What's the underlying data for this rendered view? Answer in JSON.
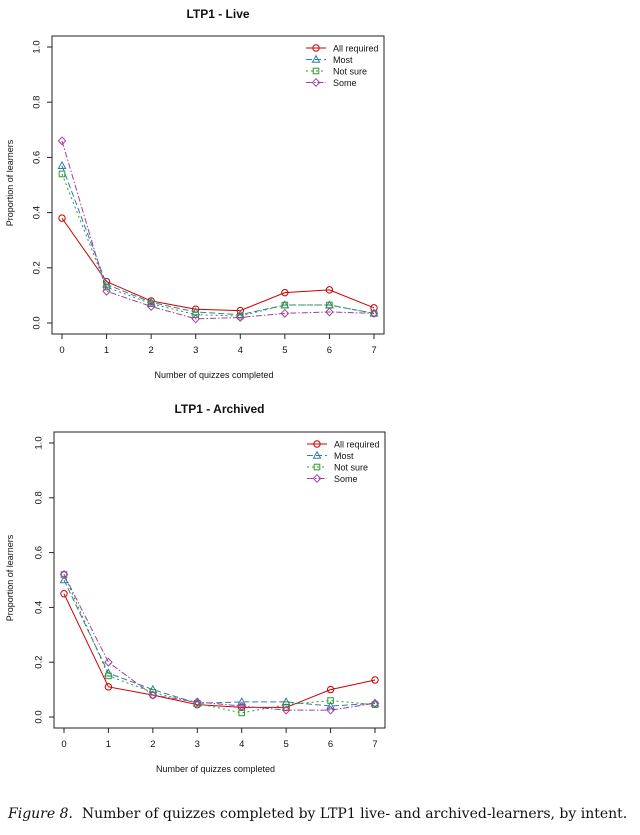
{
  "chart_data": [
    {
      "type": "line",
      "title": "LTP1 - Live",
      "xlabel": "Number of quizzes completed",
      "ylabel": "Proportion of learners",
      "x": [
        0,
        1,
        2,
        3,
        4,
        5,
        6,
        7
      ],
      "xticks": [
        "0",
        "1",
        "2",
        "3",
        "4",
        "5",
        "6",
        "7"
      ],
      "yticks": [
        "0.0",
        "0.2",
        "0.4",
        "0.6",
        "0.8",
        "1.0"
      ],
      "xlim": [
        0,
        7
      ],
      "ylim": [
        0,
        1
      ],
      "legend_position": "top-right",
      "series": [
        {
          "name": "All required",
          "color": "#cc0000",
          "marker": "circle",
          "dash": "solid",
          "values": [
            0.38,
            0.15,
            0.08,
            0.05,
            0.045,
            0.11,
            0.12,
            0.055
          ]
        },
        {
          "name": "Most",
          "color": "#2e7fa6",
          "marker": "triangle",
          "dash": "dashed",
          "values": [
            0.57,
            0.14,
            0.075,
            0.04,
            0.03,
            0.065,
            0.065,
            0.035
          ]
        },
        {
          "name": "Not sure",
          "color": "#2e9a2e",
          "marker": "square",
          "dash": "dotted",
          "values": [
            0.54,
            0.13,
            0.07,
            0.03,
            0.025,
            0.065,
            0.065,
            0.035
          ]
        },
        {
          "name": "Some",
          "color": "#a040a0",
          "marker": "diamond",
          "dash": "dashdot",
          "values": [
            0.66,
            0.115,
            0.06,
            0.015,
            0.02,
            0.035,
            0.04,
            0.035
          ]
        }
      ]
    },
    {
      "type": "line",
      "title": "LTP1 - Archived",
      "xlabel": "Number of quizzes completed",
      "ylabel": "Proportion of learners",
      "x": [
        0,
        1,
        2,
        3,
        4,
        5,
        6,
        7
      ],
      "xticks": [
        "0",
        "1",
        "2",
        "3",
        "4",
        "5",
        "6",
        "7"
      ],
      "yticks": [
        "0.0",
        "0.2",
        "0.4",
        "0.6",
        "0.8",
        "1.0"
      ],
      "xlim": [
        0,
        7
      ],
      "ylim": [
        0,
        1
      ],
      "legend_position": "top-right",
      "series": [
        {
          "name": "All required",
          "color": "#cc0000",
          "marker": "circle",
          "dash": "solid",
          "values": [
            0.45,
            0.11,
            0.08,
            0.045,
            0.035,
            0.035,
            0.1,
            0.135
          ]
        },
        {
          "name": "Most",
          "color": "#2e7fa6",
          "marker": "triangle",
          "dash": "dashed",
          "values": [
            0.5,
            0.16,
            0.1,
            0.05,
            0.055,
            0.055,
            0.04,
            0.05
          ]
        },
        {
          "name": "Not sure",
          "color": "#2e9a2e",
          "marker": "square",
          "dash": "dotted",
          "values": [
            0.52,
            0.15,
            0.09,
            0.05,
            0.015,
            0.045,
            0.06,
            0.045
          ]
        },
        {
          "name": "Some",
          "color": "#a040a0",
          "marker": "diamond",
          "dash": "dashdot",
          "values": [
            0.52,
            0.2,
            0.08,
            0.055,
            0.04,
            0.025,
            0.025,
            0.05
          ]
        }
      ]
    }
  ],
  "caption": {
    "label": "Figure 8",
    "text": "Number of quizzes completed by LTP1 live- and archived-learners, by intent."
  }
}
